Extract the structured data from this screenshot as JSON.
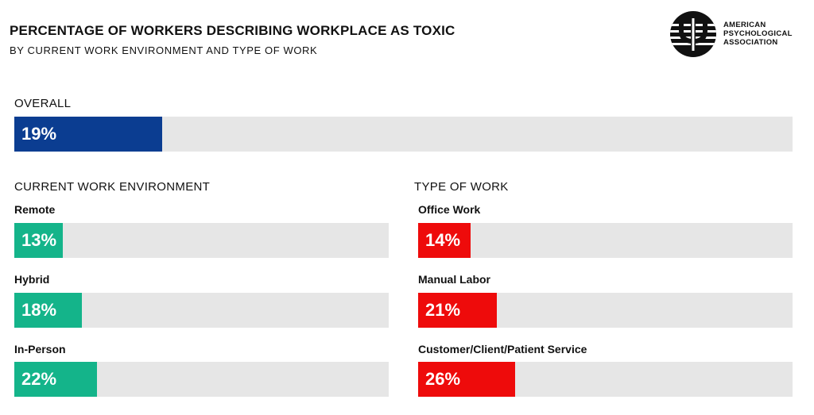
{
  "header": {
    "title": "PERCENTAGE OF WORKERS DESCRIBING WORKPLACE AS TOXIC",
    "subtitle": "BY CURRENT WORK ENVIRONMENT AND TYPE OF WORK"
  },
  "logo": {
    "line1": "AMERICAN",
    "line2": "PSYCHOLOGICAL",
    "line3": "ASSOCIATION"
  },
  "colors": {
    "overall": "#0b3d91",
    "environment": "#14b48a",
    "work_type": "#ee0b0b",
    "track": "#e6e6e6"
  },
  "chart_data": [
    {
      "type": "bar",
      "title": "OVERALL",
      "categories": [
        ""
      ],
      "values": [
        19
      ],
      "value_labels": [
        "19%"
      ],
      "xlim": [
        0,
        100
      ]
    },
    {
      "type": "bar",
      "title": "CURRENT WORK ENVIRONMENT",
      "categories": [
        "Remote",
        "Hybrid",
        "In-Person"
      ],
      "values": [
        13,
        18,
        22
      ],
      "value_labels": [
        "13%",
        "18%",
        "22%"
      ],
      "xlim": [
        0,
        100
      ]
    },
    {
      "type": "bar",
      "title": "TYPE OF WORK",
      "categories": [
        "Office Work",
        "Manual Labor",
        "Customer/Client/Patient Service"
      ],
      "values": [
        14,
        21,
        26
      ],
      "value_labels": [
        "14%",
        "21%",
        "26%"
      ],
      "xlim": [
        0,
        100
      ]
    }
  ]
}
